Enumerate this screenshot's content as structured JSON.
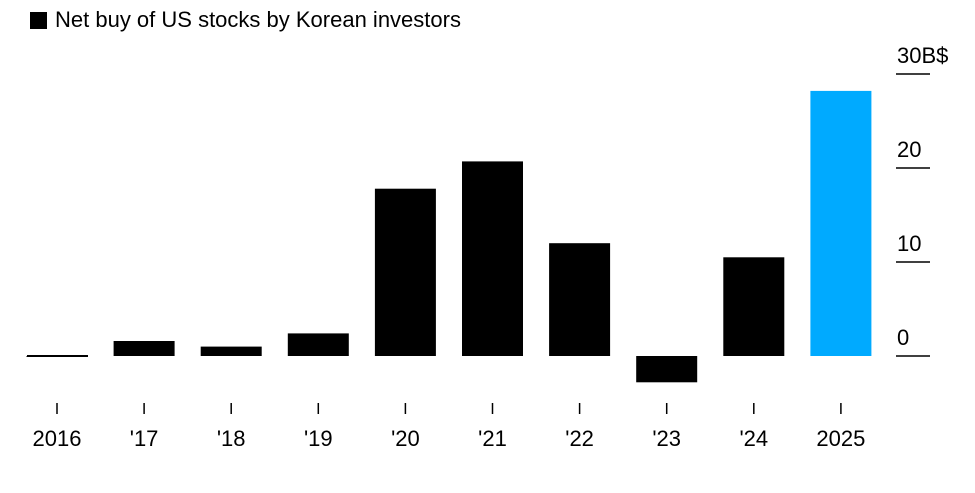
{
  "legend": {
    "label": "Net buy of US stocks by Korean investors",
    "color": "#000000"
  },
  "chart_data": {
    "type": "bar",
    "title": "",
    "xlabel": "",
    "ylabel": "",
    "categories": [
      "2016",
      "'17",
      "'18",
      "'19",
      "'20",
      "'21",
      "'22",
      "'23",
      "'24",
      "2025"
    ],
    "series": [
      {
        "name": "Net buy of US stocks by Korean investors",
        "values": [
          -0.1,
          1.6,
          1.0,
          2.4,
          17.8,
          20.7,
          12.0,
          -2.8,
          10.5,
          28.2
        ]
      }
    ],
    "bar_colors": [
      "#000000",
      "#000000",
      "#000000",
      "#000000",
      "#000000",
      "#000000",
      "#000000",
      "#000000",
      "#000000",
      "#00aaff"
    ],
    "highlight_color": "#00aaff",
    "ylim": [
      -5,
      32
    ],
    "yticks": [
      0,
      10,
      20,
      30
    ],
    "ytick_labels": [
      "0",
      "10",
      "20",
      "30B$"
    ],
    "y_axis_side": "right",
    "grid": false
  }
}
